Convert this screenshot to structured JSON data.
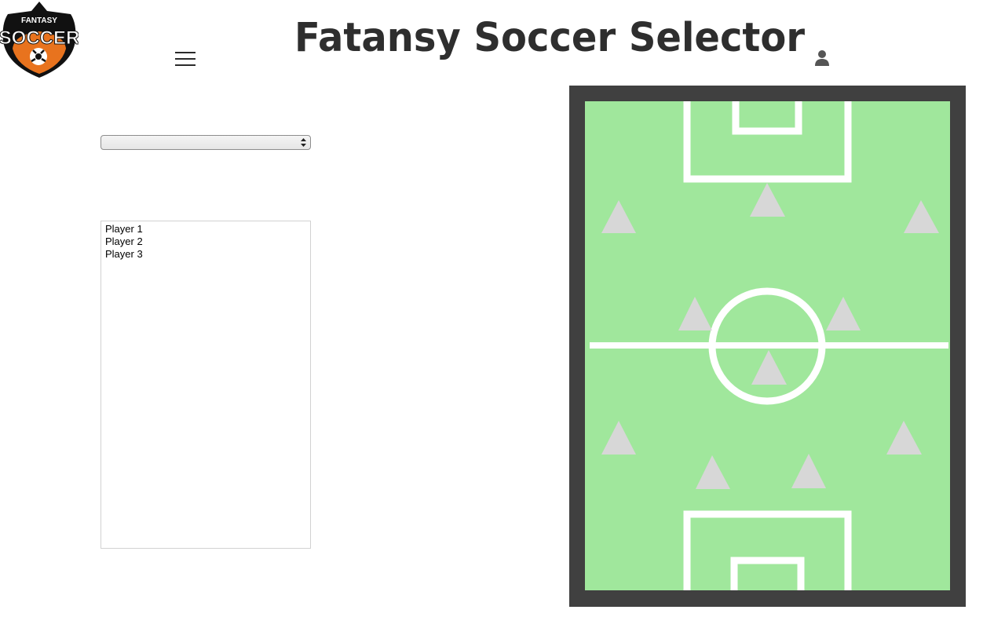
{
  "header": {
    "logo": {
      "top_text": "FANTASY",
      "main_text": "SOCCER",
      "colors": {
        "shield": "#111111",
        "accent": "#e8731e",
        "text": "#ffffff"
      }
    },
    "title": "Fatansy Soccer Selector",
    "menu_icon": "hamburger-menu-icon",
    "user_icon": "user-icon"
  },
  "selector": {
    "team_select": {
      "value": "",
      "options": []
    },
    "players": [
      "Player 1",
      "Player 2",
      "Player 3"
    ]
  },
  "pitch": {
    "colors": {
      "frame": "#404040",
      "grass": "#a0e79c",
      "lines": "#ffffff",
      "marker": "#d7d7d7"
    },
    "formation_slots": 11
  }
}
